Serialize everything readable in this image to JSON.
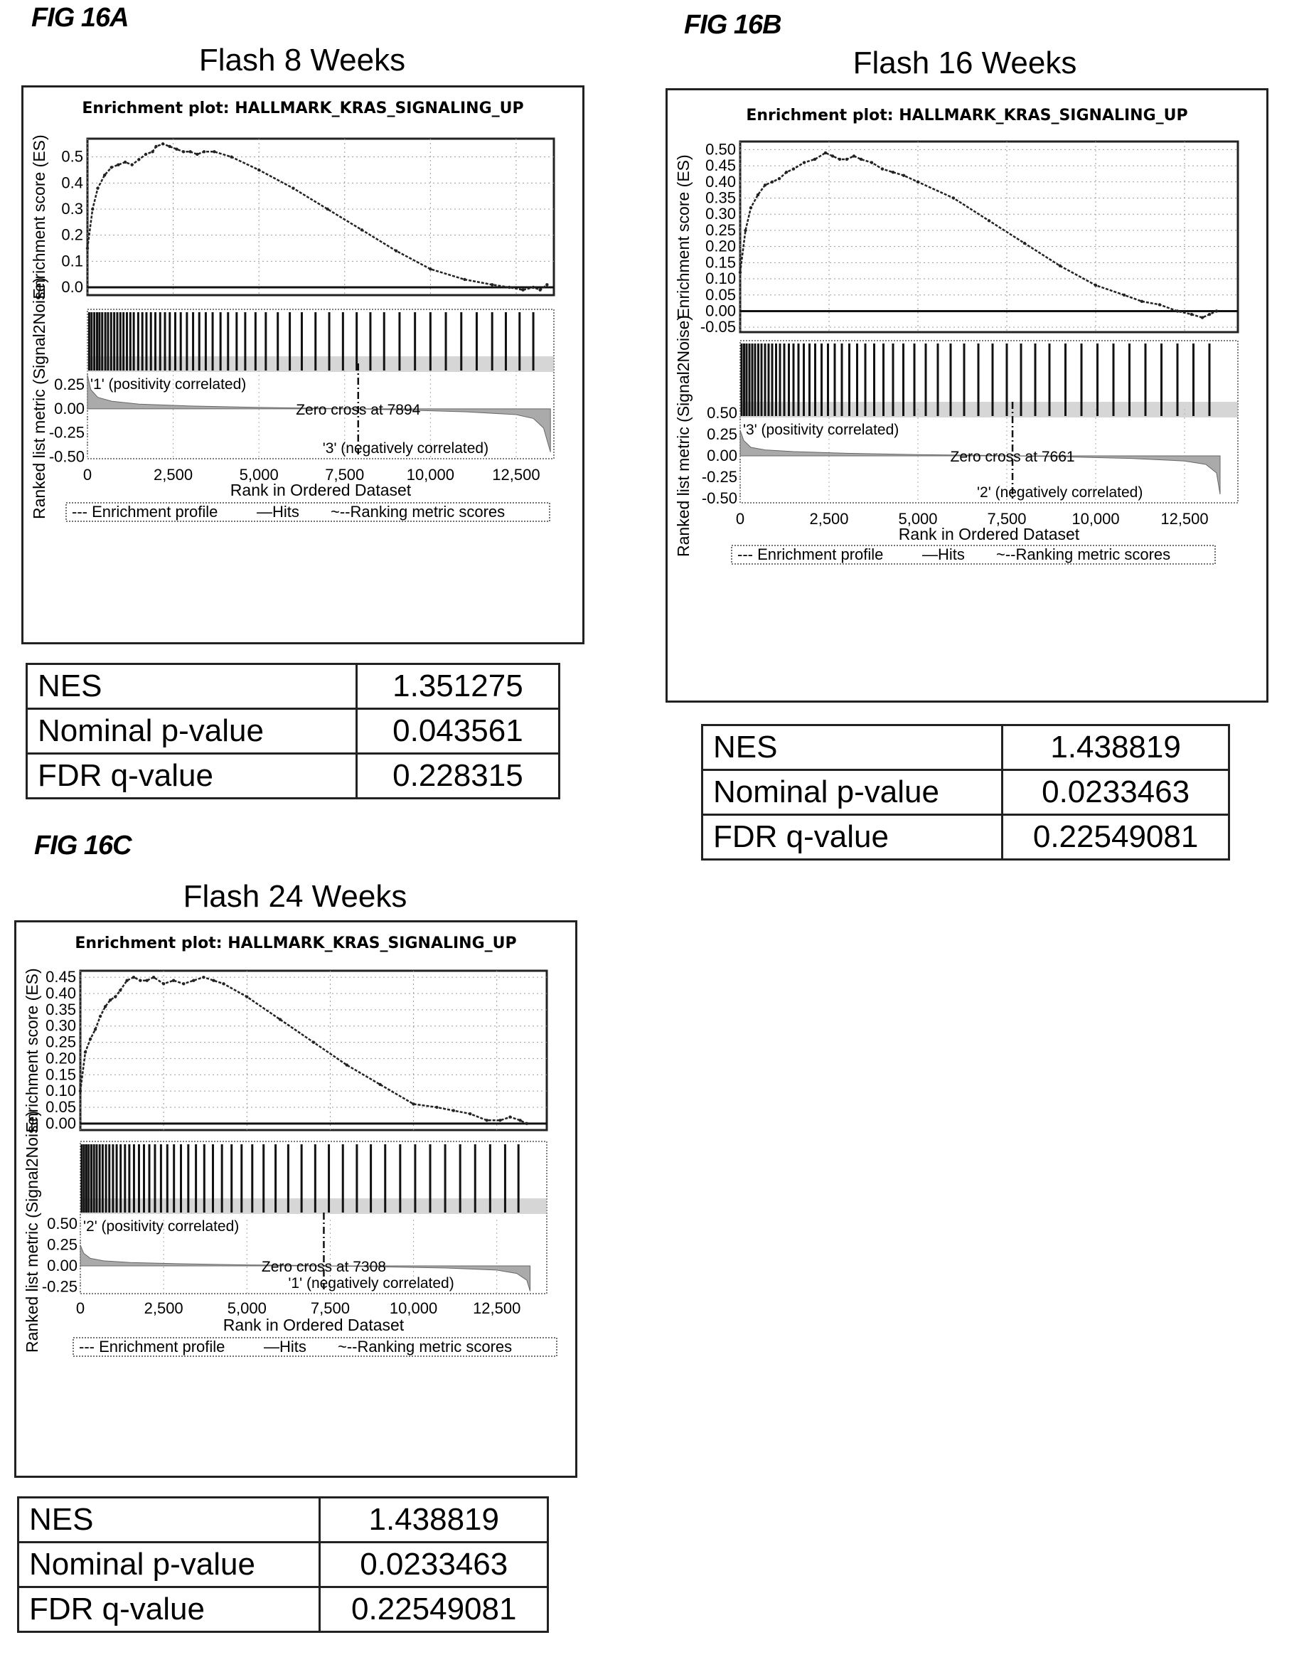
{
  "figures": [
    {
      "fig_label": "FIG 16A",
      "title": "Flash 8 Weeks",
      "stats": [
        {
          "label": "NES",
          "value": "1.351275"
        },
        {
          "label": "Nominal p-value",
          "value": "0.043561"
        },
        {
          "label": "FDR q-value",
          "value": "0.228315"
        }
      ]
    },
    {
      "fig_label": "FIG 16B",
      "title": "Flash 16 Weeks",
      "stats": [
        {
          "label": "NES",
          "value": "1.438819"
        },
        {
          "label": "Nominal p-value",
          "value": "0.0233463"
        },
        {
          "label": "FDR q-value",
          "value": "0.22549081"
        }
      ]
    },
    {
      "fig_label": "FIG 16C",
      "title": "Flash 24 Weeks",
      "stats": [
        {
          "label": "NES",
          "value": "1.438819"
        },
        {
          "label": "Nominal p-value",
          "value": "0.0233463"
        },
        {
          "label": "FDR q-value",
          "value": "0.22549081"
        }
      ]
    }
  ],
  "chart_data": [
    {
      "type": "line",
      "title": "Enrichment plot: HALLMARK_KRAS_SIGNALING_UP",
      "xlabel": "Rank in Ordered Dataset",
      "ylabel_top": "Enrichment score (ES)",
      "ylabel_bottom": "Ranked list metric (Signal2Noise)",
      "xlim": [
        0,
        13600
      ],
      "x_ticks": [
        0,
        2500,
        5000,
        7500,
        10000,
        12500
      ],
      "x_tick_labels": [
        "0",
        "2,500",
        "5,000",
        "7,500",
        "10,000",
        "12,500"
      ],
      "es_ylim": [
        -0.03,
        0.57
      ],
      "es_ticks": [
        0.0,
        0.1,
        0.2,
        0.3,
        0.4,
        0.5
      ],
      "es_tick_labels": [
        "0.0",
        "0.1",
        "0.2",
        "0.3",
        "0.4",
        "0.5"
      ],
      "metric_ylim": [
        -0.52,
        0.4
      ],
      "metric_ticks": [
        0.25,
        0.0,
        -0.25,
        -0.5
      ],
      "metric_tick_labels": [
        "0.25",
        "0.00",
        "-0.25",
        "-0.50"
      ],
      "enrichment_profile": {
        "x": [
          0,
          150,
          300,
          500,
          700,
          900,
          1100,
          1300,
          1500,
          1700,
          1900,
          2000,
          2200,
          2400,
          2600,
          2800,
          3000,
          3200,
          3400,
          3700,
          4200,
          5000,
          6000,
          7000,
          8000,
          9000,
          10000,
          11000,
          11800,
          12300,
          12700,
          13000,
          13200,
          13400
        ],
        "y": [
          0.15,
          0.3,
          0.38,
          0.43,
          0.46,
          0.47,
          0.48,
          0.47,
          0.49,
          0.51,
          0.52,
          0.54,
          0.55,
          0.54,
          0.53,
          0.52,
          0.52,
          0.51,
          0.52,
          0.52,
          0.5,
          0.45,
          0.38,
          0.3,
          0.22,
          0.14,
          0.07,
          0.03,
          0.01,
          0.0,
          -0.01,
          0.0,
          -0.01,
          0.01
        ]
      },
      "hits_x": [
        50,
        120,
        200,
        280,
        350,
        430,
        520,
        600,
        690,
        780,
        870,
        960,
        1050,
        1150,
        1250,
        1350,
        1480,
        1600,
        1720,
        1850,
        1980,
        2120,
        2260,
        2400,
        2560,
        2720,
        2900,
        3080,
        3260,
        3450,
        3650,
        3880,
        4100,
        4350,
        4600,
        4900,
        5200,
        5550,
        5900,
        6250,
        6650,
        7050,
        7450,
        7850,
        8250,
        8650,
        9100,
        9550,
        10000,
        10450,
        10900,
        11350,
        11800,
        12200,
        12600,
        13000
      ],
      "metric_curve": {
        "x": [
          0,
          100,
          300,
          700,
          1500,
          3000,
          5000,
          7000,
          7894,
          9000,
          11000,
          12500,
          13000,
          13300,
          13500
        ],
        "y": [
          0.35,
          0.2,
          0.12,
          0.08,
          0.05,
          0.03,
          0.015,
          0.005,
          0.0,
          -0.01,
          -0.03,
          -0.06,
          -0.1,
          -0.2,
          -0.45
        ]
      },
      "zero_cross_x": 7894,
      "zero_cross_label": "Zero cross at 7894",
      "pos_label": "'1' (positivity correlated)",
      "neg_label": "'3' (negatively correlated)",
      "legend": [
        "--- Enrichment profile",
        "—Hits",
        "~--Ranking metric scores"
      ]
    },
    {
      "type": "line",
      "title": "Enrichment plot: HALLMARK_KRAS_SIGNALING_UP",
      "xlabel": "Rank in Ordered Dataset",
      "ylabel_top": "Enrichment score (ES)",
      "ylabel_bottom": "Ranked list metric (Signal2Noise)",
      "xlim": [
        0,
        14000
      ],
      "x_ticks": [
        0,
        2500,
        5000,
        7500,
        10000,
        12500
      ],
      "x_tick_labels": [
        "0",
        "2,500",
        "5,000",
        "7,500",
        "10,000",
        "12,500"
      ],
      "es_ylim": [
        -0.065,
        0.525
      ],
      "es_ticks": [
        0.5,
        0.45,
        0.4,
        0.35,
        0.3,
        0.25,
        0.2,
        0.15,
        0.1,
        0.05,
        0.0,
        -0.05
      ],
      "es_tick_labels": [
        "0.50",
        "0.45",
        "0.40",
        "0.35",
        "0.30",
        "0.25",
        "0.20",
        "0.15",
        "0.10",
        "0.05",
        "0.00",
        "-0.05"
      ],
      "metric_ylim": [
        -0.55,
        0.55
      ],
      "metric_ticks": [
        0.5,
        0.25,
        0.0,
        -0.25,
        -0.5
      ],
      "metric_tick_labels": [
        "0.50",
        "0.25",
        "0.00",
        "-0.25",
        "-0.50"
      ],
      "enrichment_profile": {
        "x": [
          0,
          150,
          300,
          500,
          700,
          900,
          1100,
          1300,
          1500,
          1800,
          2100,
          2400,
          2600,
          2800,
          3000,
          3200,
          3400,
          3700,
          4000,
          4300,
          4600,
          5000,
          6000,
          7000,
          8000,
          9000,
          10000,
          10800,
          11300,
          11800,
          12300,
          12700,
          13000,
          13200,
          13400
        ],
        "y": [
          0.12,
          0.25,
          0.32,
          0.36,
          0.39,
          0.4,
          0.41,
          0.43,
          0.44,
          0.46,
          0.47,
          0.49,
          0.48,
          0.47,
          0.47,
          0.48,
          0.47,
          0.46,
          0.44,
          0.43,
          0.42,
          0.4,
          0.35,
          0.28,
          0.21,
          0.14,
          0.08,
          0.05,
          0.03,
          0.02,
          0.0,
          -0.01,
          -0.02,
          -0.01,
          0.0
        ]
      },
      "hits_x": [
        40,
        110,
        180,
        260,
        340,
        420,
        510,
        600,
        700,
        800,
        900,
        1010,
        1120,
        1240,
        1370,
        1500,
        1640,
        1790,
        1950,
        2110,
        2290,
        2470,
        2660,
        2860,
        3070,
        3290,
        3520,
        3770,
        4030,
        4300,
        4590,
        4900,
        5220,
        5560,
        5920,
        6300,
        6700,
        7100,
        7500,
        7900,
        8300,
        8700,
        9150,
        9600,
        10050,
        10500,
        10950,
        11400,
        11850,
        12300,
        12750,
        13200
      ],
      "metric_curve": {
        "x": [
          0,
          100,
          300,
          700,
          1500,
          3000,
          5000,
          7000,
          7661,
          9000,
          11000,
          12500,
          13100,
          13400,
          13500
        ],
        "y": [
          0.3,
          0.18,
          0.1,
          0.07,
          0.05,
          0.03,
          0.015,
          0.005,
          0.0,
          -0.01,
          -0.03,
          -0.06,
          -0.1,
          -0.2,
          -0.45
        ]
      },
      "zero_cross_x": 7661,
      "zero_cross_label": "Zero cross at 7661",
      "pos_label": "'3' (positivity correlated)",
      "neg_label": "'2' (negatively correlated)",
      "legend": [
        "--- Enrichment profile",
        "—Hits",
        "~--Ranking metric scores"
      ]
    },
    {
      "type": "line",
      "title": "Enrichment plot: HALLMARK_KRAS_SIGNALING_UP",
      "xlabel": "Rank in Ordered Dataset",
      "ylabel_top": "Enrichment score (ES)",
      "ylabel_bottom": "Ranked list metric (Signal2Noise)",
      "xlim": [
        0,
        14000
      ],
      "x_ticks": [
        0,
        2500,
        5000,
        7500,
        10000,
        12500
      ],
      "x_tick_labels": [
        "0",
        "2,500",
        "5,000",
        "7,500",
        "10,000",
        "12,500"
      ],
      "es_ylim": [
        -0.02,
        0.47
      ],
      "es_ticks": [
        0.45,
        0.4,
        0.35,
        0.3,
        0.25,
        0.2,
        0.15,
        0.1,
        0.05,
        0.0
      ],
      "es_tick_labels": [
        "0.45",
        "0.40",
        "0.35",
        "0.30",
        "0.25",
        "0.20",
        "0.15",
        "0.10",
        "0.05",
        "0.00"
      ],
      "metric_ylim": [
        -0.33,
        0.55
      ],
      "metric_ticks": [
        0.5,
        0.25,
        0.0,
        -0.25
      ],
      "metric_tick_labels": [
        "0.50",
        "0.25",
        "0.00",
        "-0.25"
      ],
      "enrichment_profile": {
        "x": [
          0,
          150,
          300,
          450,
          600,
          750,
          900,
          1050,
          1200,
          1400,
          1600,
          1800,
          2000,
          2200,
          2500,
          2800,
          3100,
          3400,
          3700,
          4000,
          4300,
          5000,
          6000,
          7000,
          8000,
          9000,
          10000,
          10700,
          11200,
          11700,
          12200,
          12600,
          12900,
          13200,
          13400
        ],
        "y": [
          0.1,
          0.22,
          0.26,
          0.29,
          0.33,
          0.36,
          0.38,
          0.39,
          0.41,
          0.44,
          0.45,
          0.44,
          0.44,
          0.45,
          0.43,
          0.44,
          0.43,
          0.44,
          0.45,
          0.44,
          0.43,
          0.39,
          0.32,
          0.25,
          0.18,
          0.12,
          0.06,
          0.05,
          0.04,
          0.03,
          0.01,
          0.01,
          0.02,
          0.01,
          0.0
        ]
      },
      "hits_x": [
        40,
        110,
        180,
        250,
        330,
        410,
        490,
        580,
        670,
        770,
        870,
        980,
        1090,
        1210,
        1340,
        1470,
        1610,
        1760,
        1910,
        2070,
        2240,
        2420,
        2610,
        2810,
        3020,
        3240,
        3470,
        3720,
        3980,
        4250,
        4540,
        4840,
        5160,
        5500,
        5860,
        6240,
        6640,
        7050,
        7460,
        7880,
        8300,
        8720,
        9150,
        9600,
        10050,
        10500,
        10950,
        11400,
        11850,
        12300,
        12750,
        13150
      ],
      "metric_curve": {
        "x": [
          0,
          100,
          300,
          700,
          1500,
          3000,
          5000,
          7000,
          7308,
          9000,
          11000,
          12500,
          13100,
          13400,
          13500
        ],
        "y": [
          0.25,
          0.15,
          0.09,
          0.06,
          0.04,
          0.025,
          0.012,
          0.004,
          0.0,
          -0.01,
          -0.025,
          -0.05,
          -0.09,
          -0.17,
          -0.3
        ]
      },
      "zero_cross_x": 7308,
      "zero_cross_label": "Zero cross at 7308",
      "pos_label": "'2' (positivity correlated)",
      "neg_label": "'1' (negatively correlated)",
      "legend": [
        "--- Enrichment profile",
        "—Hits",
        "~--Ranking metric scores"
      ]
    }
  ]
}
